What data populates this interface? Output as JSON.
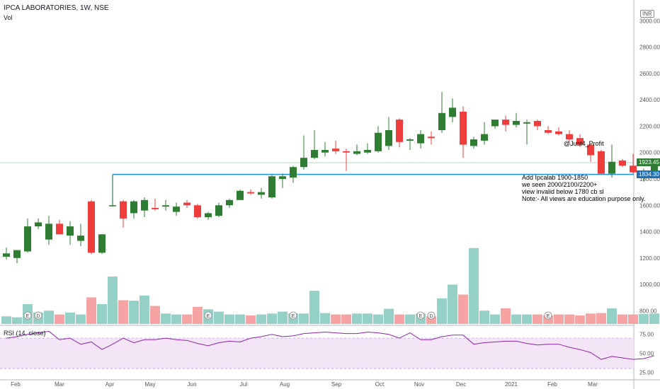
{
  "header": {
    "title": "IPCA LABORATORIES, 1W, NSE",
    "volume_label": "Vol",
    "currency": "INR"
  },
  "annotations": {
    "author": "@Just4_Profit",
    "note_lines": [
      "Add Ipcalab 1900-1850",
      "we seen 2000/2100/2200+",
      "view invalid below 1780 cb sl",
      "Note:- All views are education purpose only."
    ]
  },
  "price_tags": {
    "last": "1923.45",
    "line": "1834.30"
  },
  "colors": {
    "up": "#2e7d32",
    "down": "#ef3c3c",
    "vol_up": "#96d1c8",
    "vol_down": "#f5a3a3",
    "level_line": "#2196f3",
    "rsi_line": "#8e24aa",
    "rsi_band": "#f3e5f5"
  },
  "chart_data": {
    "type": "candlestick",
    "interval": "1W",
    "x_labels": [
      "Feb",
      "Mar",
      "Apr",
      "May",
      "Jun",
      "Jul",
      "Aug",
      "Sep",
      "Oct",
      "Nov",
      "Dec",
      "2021",
      "Feb",
      "Mar"
    ],
    "y_ticks": [
      800,
      1000,
      1200,
      1400,
      1600,
      1800,
      2000,
      2200,
      2400,
      2600,
      2800,
      3000
    ],
    "ylim": [
      700,
      3050
    ],
    "horizontal_level": 1834.3,
    "last_price": 1923.45,
    "candles": [
      {
        "o": 1210,
        "h": 1280,
        "l": 1190,
        "c": 1235
      },
      {
        "o": 1200,
        "h": 1260,
        "l": 1160,
        "c": 1260
      },
      {
        "o": 1250,
        "h": 1500,
        "l": 1240,
        "c": 1440
      },
      {
        "o": 1440,
        "h": 1500,
        "l": 1420,
        "c": 1470
      },
      {
        "o": 1340,
        "h": 1520,
        "l": 1300,
        "c": 1460
      },
      {
        "o": 1460,
        "h": 1490,
        "l": 1380,
        "c": 1380
      },
      {
        "o": 1370,
        "h": 1480,
        "l": 1300,
        "c": 1440
      },
      {
        "o": 1330,
        "h": 1460,
        "l": 1290,
        "c": 1370
      },
      {
        "o": 1630,
        "h": 1640,
        "l": 1230,
        "c": 1240
      },
      {
        "o": 1240,
        "h": 1380,
        "l": 1230,
        "c": 1380
      },
      {
        "o": 1600,
        "h": 1830,
        "l": 1590,
        "c": 1600
      },
      {
        "o": 1630,
        "h": 1640,
        "l": 1430,
        "c": 1500
      },
      {
        "o": 1540,
        "h": 1640,
        "l": 1500,
        "c": 1630
      },
      {
        "o": 1560,
        "h": 1660,
        "l": 1510,
        "c": 1640
      },
      {
        "o": 1580,
        "h": 1650,
        "l": 1560,
        "c": 1570
      },
      {
        "o": 1590,
        "h": 1640,
        "l": 1560,
        "c": 1600
      },
      {
        "o": 1550,
        "h": 1620,
        "l": 1520,
        "c": 1590
      },
      {
        "o": 1620,
        "h": 1640,
        "l": 1580,
        "c": 1600
      },
      {
        "o": 1600,
        "h": 1610,
        "l": 1500,
        "c": 1510
      },
      {
        "o": 1510,
        "h": 1550,
        "l": 1490,
        "c": 1540
      },
      {
        "o": 1520,
        "h": 1620,
        "l": 1510,
        "c": 1600
      },
      {
        "o": 1600,
        "h": 1650,
        "l": 1580,
        "c": 1640
      },
      {
        "o": 1640,
        "h": 1720,
        "l": 1640,
        "c": 1710
      },
      {
        "o": 1700,
        "h": 1720,
        "l": 1680,
        "c": 1690
      },
      {
        "o": 1680,
        "h": 1730,
        "l": 1650,
        "c": 1700
      },
      {
        "o": 1660,
        "h": 1830,
        "l": 1650,
        "c": 1820
      },
      {
        "o": 1800,
        "h": 1840,
        "l": 1730,
        "c": 1820
      },
      {
        "o": 1810,
        "h": 1900,
        "l": 1770,
        "c": 1890
      },
      {
        "o": 1890,
        "h": 2130,
        "l": 1870,
        "c": 1960
      },
      {
        "o": 1960,
        "h": 2170,
        "l": 1950,
        "c": 2020
      },
      {
        "o": 2000,
        "h": 2080,
        "l": 1970,
        "c": 2020
      },
      {
        "o": 2030,
        "h": 2090,
        "l": 1990,
        "c": 2010
      },
      {
        "o": 2010,
        "h": 2030,
        "l": 1860,
        "c": 2000
      },
      {
        "o": 1990,
        "h": 2060,
        "l": 1980,
        "c": 2010
      },
      {
        "o": 2000,
        "h": 2070,
        "l": 1990,
        "c": 2020
      },
      {
        "o": 2010,
        "h": 2200,
        "l": 2000,
        "c": 2150
      },
      {
        "o": 2050,
        "h": 2270,
        "l": 2020,
        "c": 2170
      },
      {
        "o": 2250,
        "h": 2260,
        "l": 2040,
        "c": 2080
      },
      {
        "o": 2090,
        "h": 2110,
        "l": 2020,
        "c": 2100
      },
      {
        "o": 2070,
        "h": 2170,
        "l": 2030,
        "c": 2140
      },
      {
        "o": 2120,
        "h": 2160,
        "l": 2060,
        "c": 2110
      },
      {
        "o": 2170,
        "h": 2460,
        "l": 2150,
        "c": 2300
      },
      {
        "o": 2270,
        "h": 2410,
        "l": 2230,
        "c": 2340
      },
      {
        "o": 2310,
        "h": 2350,
        "l": 1960,
        "c": 2060
      },
      {
        "o": 2050,
        "h": 2120,
        "l": 2030,
        "c": 2100
      },
      {
        "o": 2090,
        "h": 2230,
        "l": 2060,
        "c": 2140
      },
      {
        "o": 2200,
        "h": 2240,
        "l": 2180,
        "c": 2250
      },
      {
        "o": 2250,
        "h": 2280,
        "l": 2160,
        "c": 2210
      },
      {
        "o": 2210,
        "h": 2300,
        "l": 2190,
        "c": 2240
      },
      {
        "o": 2220,
        "h": 2250,
        "l": 2060,
        "c": 2230
      },
      {
        "o": 2240,
        "h": 2250,
        "l": 2170,
        "c": 2200
      },
      {
        "o": 2170,
        "h": 2200,
        "l": 2140,
        "c": 2150
      },
      {
        "o": 2160,
        "h": 2190,
        "l": 2130,
        "c": 2140
      },
      {
        "o": 2140,
        "h": 2170,
        "l": 2080,
        "c": 2100
      },
      {
        "o": 2110,
        "h": 2140,
        "l": 2040,
        "c": 2060
      },
      {
        "o": 2060,
        "h": 2060,
        "l": 1930,
        "c": 1980
      },
      {
        "o": 2010,
        "h": 2020,
        "l": 1840,
        "c": 1840
      },
      {
        "o": 1840,
        "h": 2060,
        "l": 1810,
        "c": 1930
      },
      {
        "o": 1940,
        "h": 1950,
        "l": 1890,
        "c": 1900
      },
      {
        "o": 1900,
        "h": 1990,
        "l": 1840,
        "c": 1850
      },
      {
        "o": 1840,
        "h": 1880,
        "l": 1780,
        "c": 1860
      },
      {
        "o": 1840,
        "h": 1940,
        "l": 1830,
        "c": 1923.45
      }
    ],
    "volume": [
      0.16,
      0.14,
      0.42,
      0.24,
      0.28,
      0.2,
      0.24,
      0.2,
      0.56,
      0.42,
      1.0,
      0.5,
      0.49,
      0.6,
      0.38,
      0.22,
      0.2,
      0.2,
      0.36,
      0.31,
      0.26,
      0.2,
      0.2,
      0.18,
      0.2,
      0.22,
      0.26,
      0.22,
      0.22,
      0.7,
      0.23,
      0.2,
      0.2,
      0.22,
      0.22,
      0.2,
      0.32,
      0.2,
      0.2,
      0.22,
      0.16,
      0.54,
      0.83,
      0.62,
      1.6,
      0.28,
      0.2,
      0.33,
      0.2,
      0.2,
      0.2,
      0.18,
      0.2,
      0.2,
      0.18,
      0.22,
      0.23,
      0.33,
      0.2,
      0.2,
      0.21,
      0.22
    ],
    "events": [
      {
        "index": 2,
        "label": "E"
      },
      {
        "index": 3,
        "label": "D"
      },
      {
        "index": 19,
        "label": "E"
      },
      {
        "index": 27,
        "label": "E"
      },
      {
        "index": 39,
        "label": "E"
      },
      {
        "index": 40,
        "label": "D"
      },
      {
        "index": 51,
        "label": "E"
      }
    ],
    "rsi": {
      "title": "RSI (14, close)",
      "ticks": [
        25,
        50,
        75
      ],
      "band": [
        30,
        70
      ],
      "values": [
        70,
        72,
        75,
        77,
        79,
        68,
        70,
        62,
        65,
        55,
        62,
        70,
        64,
        68,
        68,
        70,
        68,
        67,
        63,
        60,
        64,
        66,
        65,
        70,
        72,
        75,
        72,
        73,
        76,
        77,
        78,
        77,
        76,
        76,
        78,
        77,
        75,
        70,
        77,
        68,
        68,
        72,
        74,
        74,
        62,
        64,
        65,
        66,
        66,
        63,
        61,
        62,
        62,
        58,
        55,
        51,
        42,
        46,
        44,
        42,
        43,
        47
      ]
    }
  }
}
